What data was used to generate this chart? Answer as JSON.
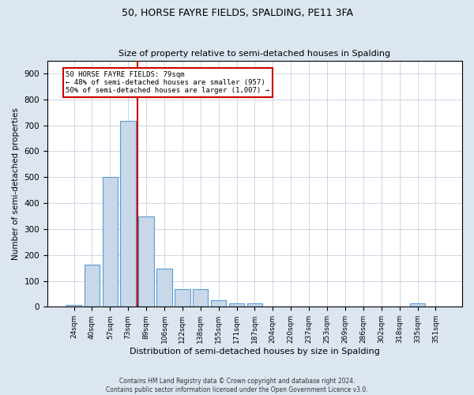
{
  "title": "50, HORSE FAYRE FIELDS, SPALDING, PE11 3FA",
  "subtitle": "Size of property relative to semi-detached houses in Spalding",
  "xlabel": "Distribution of semi-detached houses by size in Spalding",
  "ylabel": "Number of semi-detached properties",
  "categories": [
    "24sqm",
    "40sqm",
    "57sqm",
    "73sqm",
    "89sqm",
    "106sqm",
    "122sqm",
    "138sqm",
    "155sqm",
    "171sqm",
    "187sqm",
    "204sqm",
    "220sqm",
    "237sqm",
    "253sqm",
    "269sqm",
    "286sqm",
    "302sqm",
    "318sqm",
    "335sqm",
    "351sqm"
  ],
  "values": [
    8,
    163,
    500,
    718,
    347,
    147,
    68,
    68,
    25,
    12,
    12,
    0,
    0,
    0,
    0,
    0,
    0,
    0,
    0,
    12,
    0
  ],
  "bar_color": "#c8d8e8",
  "bar_edge_color": "#5b9bd5",
  "vline_x": 3.5,
  "vline_color": "#cc0000",
  "annotation_text": "50 HORSE FAYRE FIELDS: 79sqm\n← 48% of semi-detached houses are smaller (957)\n50% of semi-detached houses are larger (1,007) →",
  "ylim": [
    0,
    950
  ],
  "yticks": [
    0,
    100,
    200,
    300,
    400,
    500,
    600,
    700,
    800,
    900
  ],
  "footnote": "Contains HM Land Registry data © Crown copyright and database right 2024.\nContains public sector information licensed under the Open Government Licence v3.0.",
  "background_color": "#dce6f1",
  "plot_background_color": "#ffffff",
  "grid_color": "#b8c8d8",
  "title_fontsize": 9,
  "subtitle_fontsize": 8
}
